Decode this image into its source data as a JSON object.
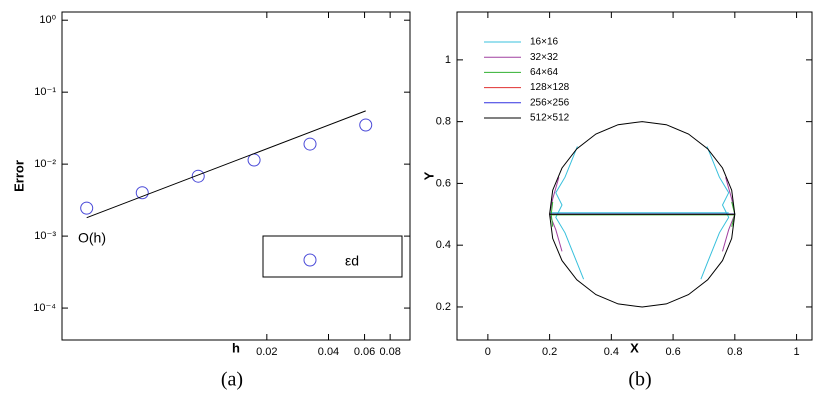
{
  "chart_data": [
    {
      "type": "scatter",
      "caption": "(a)",
      "x_label": "h",
      "y_label": "Error",
      "annotation": "O(h)",
      "xscale": "log",
      "yscale": "log",
      "xlim": [
        0.002,
        0.1
      ],
      "ylim": [
        3.6e-05,
        1.3
      ],
      "xticks": [
        0.02,
        0.04,
        0.06,
        0.08
      ],
      "yticks": [
        {
          "value": 1,
          "label": "10⁰"
        },
        {
          "value": 0.1,
          "label": "10⁻¹"
        },
        {
          "value": 0.01,
          "label": "10⁻²"
        },
        {
          "value": 0.001,
          "label": "10⁻³"
        },
        {
          "value": 0.0001,
          "label": "10⁻⁴"
        }
      ],
      "legend": "lower right",
      "series": [
        {
          "name": "εd",
          "mode": "markers",
          "color": "#4a4ad8",
          "x": [
            0.00264,
            0.00493,
            0.00925,
            0.01733,
            0.0325,
            0.0608
          ],
          "values": [
            0.00245,
            0.004,
            0.0068,
            0.0114,
            0.019,
            0.035
          ]
        },
        {
          "mode": "line",
          "color": "#000000",
          "x": [
            0.00264,
            0.0608
          ],
          "values": [
            0.0018,
            0.055
          ]
        }
      ]
    },
    {
      "type": "line",
      "caption": "(b)",
      "x_label": "X",
      "y_label": "Y",
      "xlim": [
        -0.1,
        1.05
      ],
      "ylim": [
        0.093,
        1.155
      ],
      "xticks": [
        0,
        0.2,
        0.4,
        0.6,
        0.8,
        1
      ],
      "yticks": [
        0.2,
        0.4,
        0.6,
        0.8,
        1
      ],
      "legend": "upper left",
      "series": [
        {
          "name": "16×16",
          "color": "#38c0dc",
          "x": [
            0.2,
            0.78,
            null,
            0.29,
            0.27,
            0.25,
            0.22,
            0.24,
            0.22,
            0.25,
            0.27,
            0.29,
            0.31,
            null,
            0.71,
            0.73,
            0.75,
            0.78,
            0.76,
            0.78,
            0.75,
            0.73,
            0.71,
            0.69
          ],
          "values": [
            0.505,
            0.505,
            null,
            0.72,
            0.67,
            0.62,
            0.57,
            0.53,
            0.49,
            0.44,
            0.39,
            0.34,
            0.29,
            null,
            0.72,
            0.67,
            0.62,
            0.57,
            0.53,
            0.49,
            0.44,
            0.39,
            0.34,
            0.29
          ]
        },
        {
          "name": "32×32",
          "color": "#a040a0",
          "x": [
            0.21,
            0.79,
            null,
            0.23,
            0.21,
            0.2,
            0.22,
            0.24,
            null,
            0.77,
            0.79,
            0.8,
            0.78,
            0.76
          ],
          "values": [
            0.5,
            0.5,
            null,
            0.62,
            0.55,
            0.5,
            0.45,
            0.38,
            null,
            0.62,
            0.55,
            0.5,
            0.45,
            0.38
          ]
        },
        {
          "name": "64×64",
          "color": "#30b030",
          "x": [
            0.2,
            0.8,
            null,
            0.21,
            0.205,
            0.21,
            null,
            0.79,
            0.8,
            0.79
          ],
          "values": [
            0.498,
            0.498,
            null,
            0.54,
            0.5,
            0.46,
            null,
            0.54,
            0.5,
            0.46
          ]
        },
        {
          "name": "128×128",
          "color": "#e03030",
          "x": [
            0.2,
            0.8
          ],
          "values": [
            0.5,
            0.5
          ]
        },
        {
          "name": "256×256",
          "color": "#3030e0",
          "x": [
            0.2,
            0.8
          ],
          "values": [
            0.501,
            0.501
          ]
        },
        {
          "name": "512×512",
          "color": "#000000",
          "x": [
            0.8,
            0.79,
            0.76,
            0.712,
            0.65,
            0.578,
            0.5,
            0.422,
            0.35,
            0.288,
            0.24,
            0.21,
            0.2,
            0.21,
            0.24,
            0.288,
            0.35,
            0.422,
            0.5,
            0.578,
            0.65,
            0.712,
            0.76,
            0.79,
            0.8,
            null,
            0.2,
            0.8
          ],
          "values": [
            0.5,
            0.578,
            0.65,
            0.712,
            0.76,
            0.79,
            0.8,
            0.79,
            0.76,
            0.712,
            0.65,
            0.578,
            0.5,
            0.422,
            0.35,
            0.288,
            0.24,
            0.21,
            0.2,
            0.21,
            0.24,
            0.288,
            0.35,
            0.422,
            0.5,
            null,
            0.5,
            0.5
          ]
        }
      ]
    }
  ]
}
